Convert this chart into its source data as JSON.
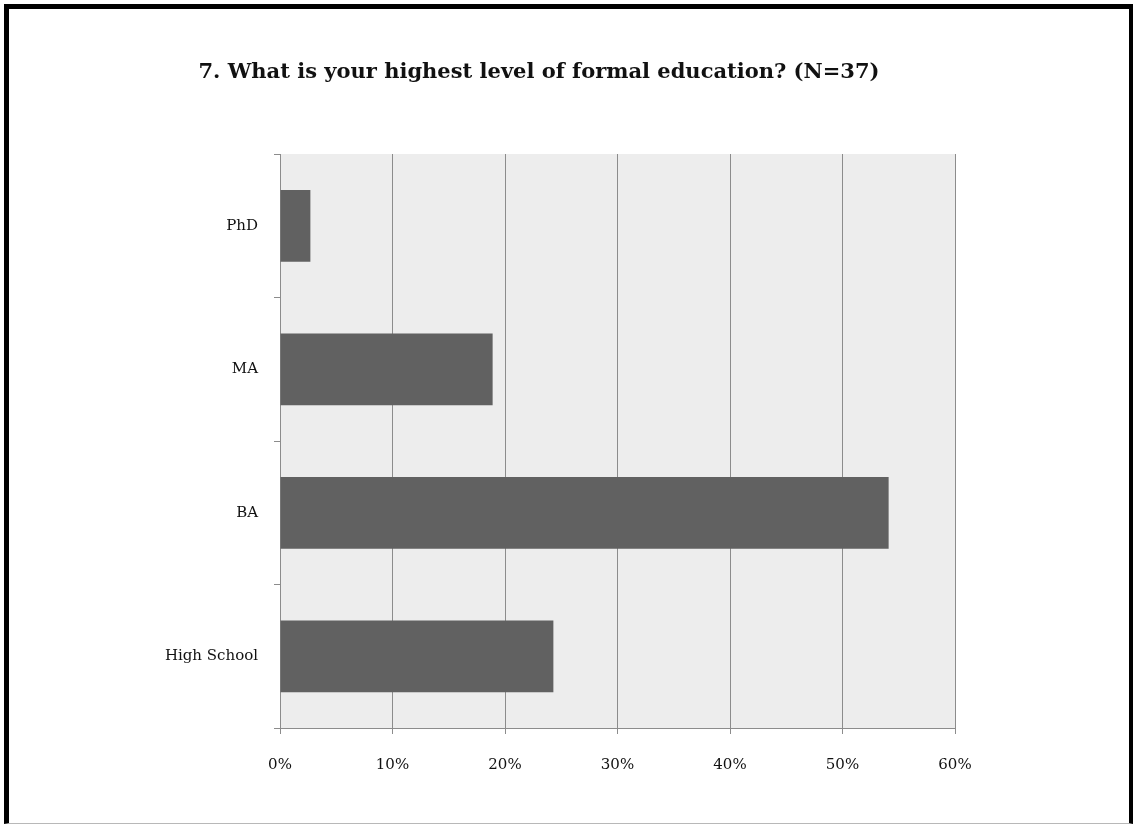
{
  "chart_data": {
    "type": "bar",
    "orientation": "horizontal",
    "title": "7. What is your highest level of formal education? (N=37)",
    "categories": [
      "PhD",
      "MA",
      "BA",
      "High School"
    ],
    "values": [
      2.7,
      18.9,
      54.1,
      24.3
    ],
    "color": "#616161",
    "xlim": [
      0,
      60
    ],
    "xticks": [
      {
        "value": 0,
        "label": "0%"
      },
      {
        "value": 10,
        "label": "10%"
      },
      {
        "value": 20,
        "label": "20%"
      },
      {
        "value": 30,
        "label": "30%"
      },
      {
        "value": 40,
        "label": "40%"
      },
      {
        "value": 50,
        "label": "50%"
      },
      {
        "value": 60,
        "label": "60%"
      }
    ],
    "grid": "x"
  }
}
